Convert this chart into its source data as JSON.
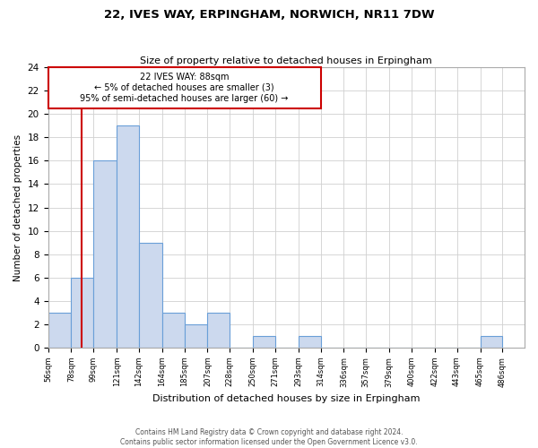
{
  "title": "22, IVES WAY, ERPINGHAM, NORWICH, NR11 7DW",
  "subtitle": "Size of property relative to detached houses in Erpingham",
  "xlabel": "Distribution of detached houses by size in Erpingham",
  "ylabel": "Number of detached properties",
  "bar_edges": [
    56,
    78,
    99,
    121,
    142,
    164,
    185,
    207,
    228,
    250,
    271,
    293,
    314,
    336,
    357,
    379,
    400,
    422,
    443,
    465,
    486
  ],
  "bar_heights": [
    3,
    6,
    16,
    19,
    9,
    3,
    2,
    3,
    0,
    1,
    0,
    1,
    0,
    0,
    0,
    0,
    0,
    0,
    0,
    1
  ],
  "bar_color": "#ccd9ee",
  "bar_edge_color": "#6a9fd8",
  "ylim": [
    0,
    24
  ],
  "yticks": [
    0,
    2,
    4,
    6,
    8,
    10,
    12,
    14,
    16,
    18,
    20,
    22,
    24
  ],
  "property_line_x": 88,
  "property_line_color": "#cc0000",
  "annotation_line1": "22 IVES WAY: 88sqm",
  "annotation_line2": "← 5% of detached houses are smaller (3)",
  "annotation_line3": "95% of semi-detached houses are larger (60) →",
  "annotation_box_color": "#ffffff",
  "annotation_box_edge_color": "#cc0000",
  "footer_text": "Contains HM Land Registry data © Crown copyright and database right 2024.\nContains public sector information licensed under the Open Government Licence v3.0.",
  "tick_labels": [
    "56sqm",
    "78sqm",
    "99sqm",
    "121sqm",
    "142sqm",
    "164sqm",
    "185sqm",
    "207sqm",
    "228sqm",
    "250sqm",
    "271sqm",
    "293sqm",
    "314sqm",
    "336sqm",
    "357sqm",
    "379sqm",
    "400sqm",
    "422sqm",
    "443sqm",
    "465sqm",
    "486sqm"
  ],
  "background_color": "#ffffff",
  "grid_color": "#d0d0d0"
}
